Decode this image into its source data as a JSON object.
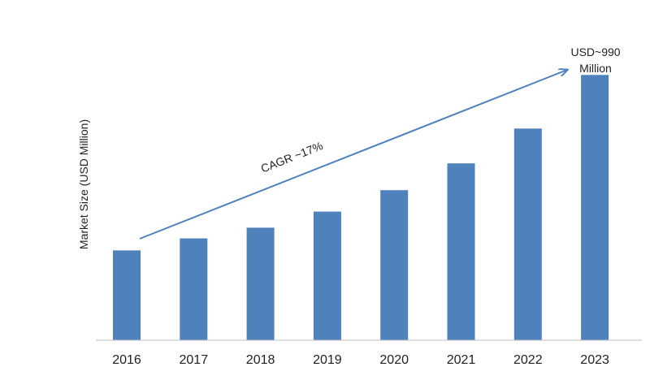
{
  "chart_data": {
    "type": "bar",
    "title": "",
    "xlabel": "",
    "ylabel": "Market Size (USD Million)",
    "categories": [
      "2016",
      "2017",
      "2018",
      "2019",
      "2020",
      "2021",
      "2022",
      "2023"
    ],
    "values": [
      335,
      380,
      420,
      480,
      560,
      660,
      790,
      990
    ],
    "ylim": [
      0,
      1100
    ],
    "grid": false,
    "legend": "none",
    "bar_color": "#4f81bd",
    "annotations": {
      "cagr": "CAGR ~17%",
      "end_value_line1": "USD~990",
      "end_value_line2": "Million"
    }
  }
}
